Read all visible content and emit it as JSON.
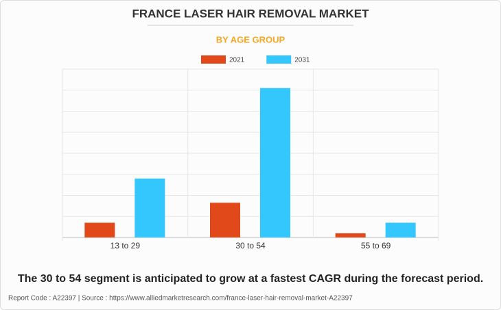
{
  "chart_data": {
    "type": "bar",
    "title": "FRANCE LASER HAIR REMOVAL MARKET",
    "subtitle": "BY AGE GROUP",
    "categories": [
      "13 to 29",
      "30 to 54",
      "55 to 69"
    ],
    "series": [
      {
        "name": "2021",
        "color": "#e2491a",
        "values": [
          0.7,
          1.65,
          0.2
        ]
      },
      {
        "name": "2031",
        "color": "#33c7fd",
        "values": [
          2.8,
          7.1,
          0.7
        ]
      }
    ],
    "ylim": [
      0,
      8
    ],
    "yticks": [
      0,
      1,
      2,
      3,
      4,
      5,
      6,
      7,
      8
    ],
    "grid": true,
    "caption": "The 30 to 54 segment is anticipated to grow at a fastest CAGR during the forecast period.",
    "footer": "Report Code : A22397  |  Source : https://www.alliedmarketresearch.com/france-laser-hair-removal-market-A22397"
  }
}
